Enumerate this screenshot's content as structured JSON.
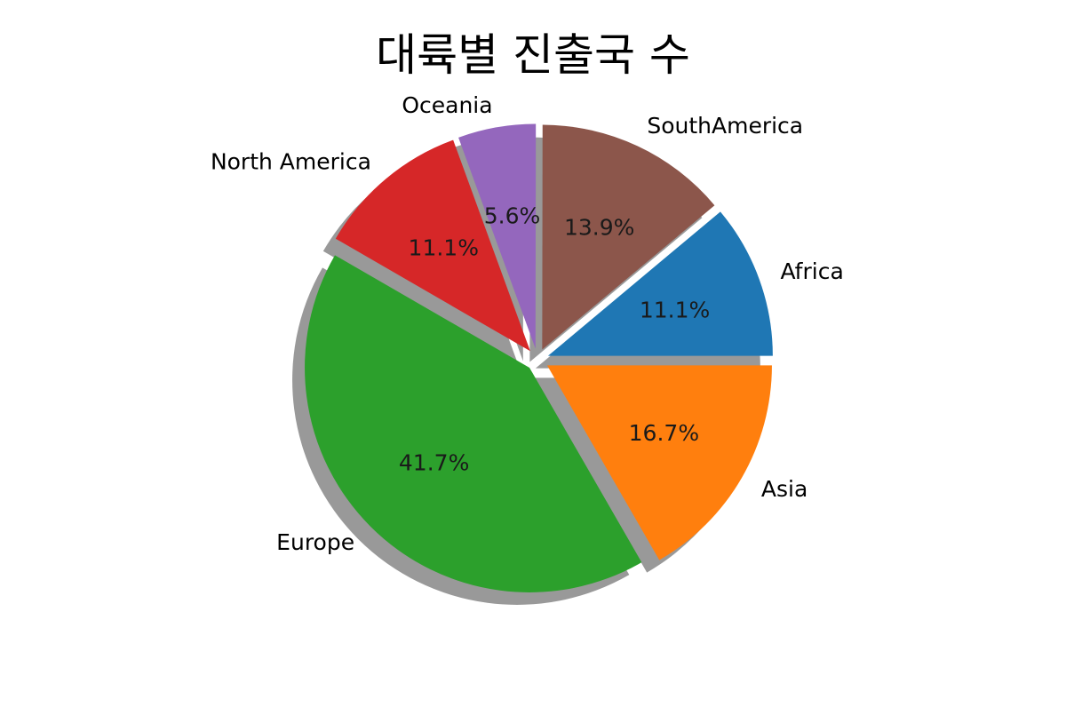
{
  "chart_data": {
    "type": "pie",
    "title": "대륙별 진출국 수",
    "start_angle_deg": 0,
    "direction": "counterclockwise",
    "shadow": true,
    "slices": [
      {
        "label": "Africa",
        "percent_label": "11.1%",
        "value": 11.1,
        "color": "#1f77b4",
        "explode": 0.05
      },
      {
        "label": "SouthAmerica",
        "percent_label": "13.9%",
        "value": 13.9,
        "color": "#8c564b",
        "explode": 0.05
      },
      {
        "label": "Oceania",
        "percent_label": "5.6%",
        "value": 5.6,
        "color": "#9467bd",
        "explode": 0.05
      },
      {
        "label": "North America",
        "percent_label": "11.1%",
        "value": 11.1,
        "color": "#d62728",
        "explode": 0.05
      },
      {
        "label": "Europe",
        "percent_label": "41.7%",
        "value": 41.7,
        "color": "#2ca02c",
        "explode": 0.05
      },
      {
        "label": "Asia",
        "percent_label": "16.7%",
        "value": 16.7,
        "color": "#ff7f0e",
        "explode": 0.05
      }
    ]
  }
}
